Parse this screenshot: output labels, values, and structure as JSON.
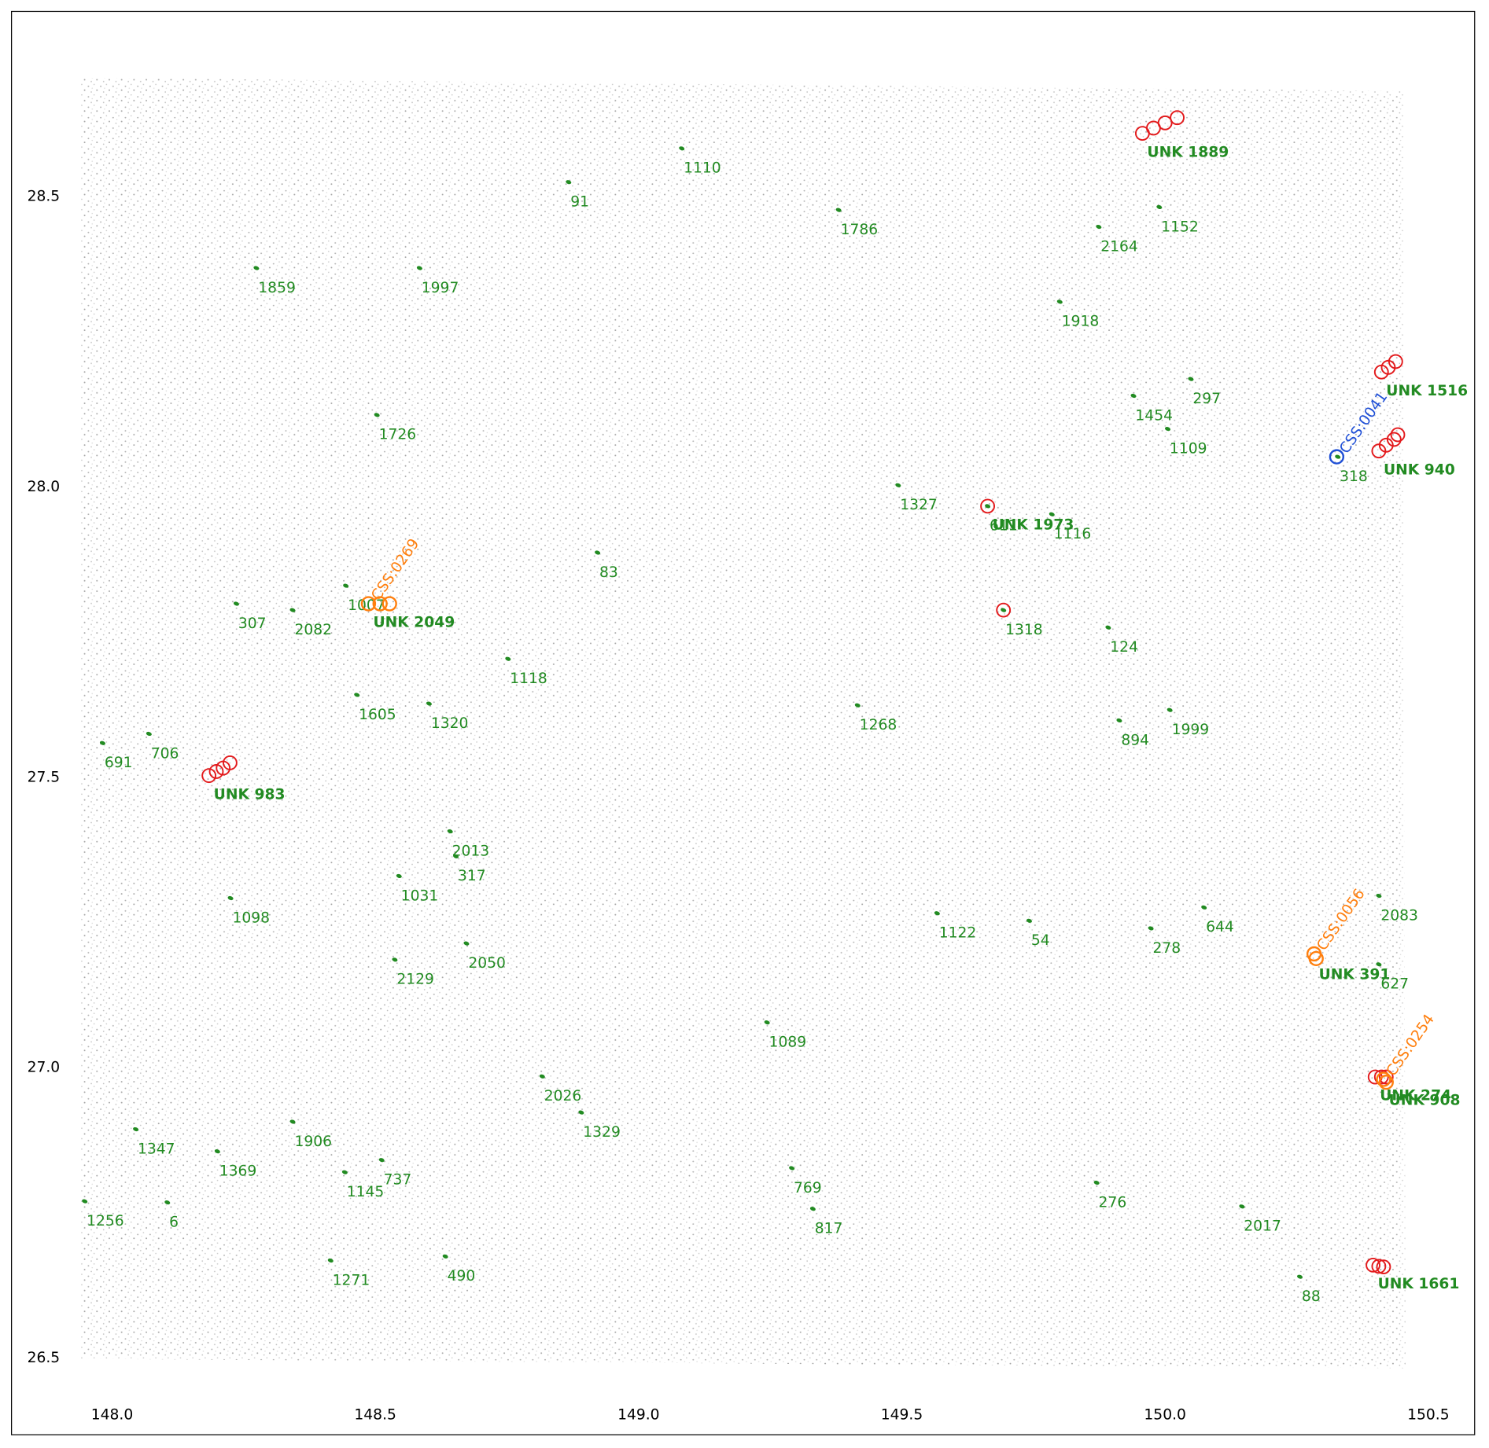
{
  "chart_data": {
    "type": "scatter",
    "xlim": [
      147.809,
      150.588
    ],
    "ylim": [
      26.368,
      28.819
    ],
    "xticks": [
      {
        "value": 148,
        "label": "148.0"
      },
      148.5,
      {
        "value": 149,
        "label": "149.0"
      },
      149.5,
      {
        "value": 150,
        "label": "150.0"
      },
      150.5
    ],
    "yticks": [
      26.5,
      {
        "value": 27,
        "label": "27.0"
      },
      27.5,
      {
        "value": 28,
        "label": "28.0"
      },
      28.5
    ],
    "sources": {
      "color": "#228b22",
      "labels": [
        "1110",
        "91",
        "1786",
        "1152",
        "2164",
        "1859",
        "1997",
        "1918",
        "297",
        "1454",
        "1726",
        "1109",
        "318",
        "1327",
        "611",
        "1116",
        "83",
        "1007",
        "307",
        "2082",
        "1318",
        "124",
        "1118",
        "1605",
        "1320",
        "1268",
        "1999",
        "894",
        "691",
        "706",
        "2013",
        "317",
        "1031",
        "1098",
        "2083",
        "644",
        "1122",
        "54",
        "278",
        "2050",
        "2129",
        "627",
        "1089",
        "2026",
        "1329",
        "1347",
        "1906",
        "1369",
        "737",
        "1145",
        "769",
        "276",
        "1256",
        "6",
        "817",
        "2017",
        "1271",
        "490",
        "88"
      ],
      "x": [
        149.082,
        148.867,
        149.38,
        149.989,
        149.874,
        148.274,
        148.584,
        149.8,
        150.049,
        149.94,
        148.503,
        150.005,
        150.328,
        149.493,
        149.663,
        149.785,
        148.922,
        148.444,
        148.236,
        148.343,
        149.693,
        149.892,
        148.752,
        148.465,
        148.602,
        149.416,
        150.009,
        149.913,
        147.982,
        148.07,
        148.642,
        148.653,
        148.545,
        148.225,
        150.406,
        150.074,
        149.567,
        149.742,
        149.973,
        148.673,
        148.537,
        150.406,
        149.244,
        148.817,
        148.891,
        148.045,
        148.343,
        148.2,
        148.512,
        148.442,
        149.291,
        149.87,
        147.948,
        148.105,
        149.331,
        150.146,
        148.415,
        148.633,
        150.256
      ],
      "y": [
        28.583,
        28.525,
        28.477,
        28.482,
        28.448,
        28.377,
        28.377,
        28.319,
        28.186,
        28.157,
        28.124,
        28.1,
        28.052,
        28.003,
        27.967,
        27.953,
        27.887,
        27.83,
        27.799,
        27.788,
        27.788,
        27.758,
        27.704,
        27.642,
        27.627,
        27.624,
        27.616,
        27.598,
        27.559,
        27.575,
        27.407,
        27.364,
        27.33,
        27.292,
        27.296,
        27.276,
        27.266,
        27.253,
        27.24,
        27.214,
        27.186,
        27.178,
        27.078,
        26.985,
        26.923,
        26.894,
        26.907,
        26.856,
        26.841,
        26.82,
        26.827,
        26.802,
        26.77,
        26.768,
        26.757,
        26.761,
        26.668,
        26.675,
        26.64
      ]
    },
    "candidates": [
      {
        "label": "UNK 1889",
        "color": "#e31a1c",
        "x": [
          149.957,
          149.978,
          150.0,
          150.023
        ],
        "y": [
          28.609,
          28.618,
          28.627,
          28.636
        ]
      },
      {
        "label": "UNK 1516",
        "color": "#e31a1c",
        "x": [
          150.411,
          150.424,
          150.438
        ],
        "y": [
          28.198,
          28.206,
          28.216
        ]
      },
      {
        "label": "UNK 940",
        "color": "#e31a1c",
        "x": [
          150.406,
          150.42,
          150.435,
          150.442
        ],
        "y": [
          28.062,
          28.072,
          28.082,
          28.09
        ]
      },
      {
        "label": "UNK 1973",
        "color": "#e31a1c",
        "x": [
          149.663
        ],
        "y": [
          27.967
        ]
      },
      {
        "color": "#e31a1c",
        "x": [
          149.693
        ],
        "y": [
          27.788
        ]
      },
      {
        "label": "UNK 2049",
        "x": [
          148.487
        ],
        "y": [
          27.799
        ]
      },
      {
        "label": "UNK 983",
        "color": "#e31a1c",
        "x": [
          148.184,
          148.198,
          148.211,
          148.224
        ],
        "y": [
          27.503,
          27.51,
          27.516,
          27.525
        ]
      },
      {
        "label": "UNK 391",
        "x": [
          150.283
        ],
        "y": [
          27.193
        ]
      },
      {
        "label": "UNK 274",
        "color": "#e31a1c",
        "x": [
          150.399,
          150.411,
          150.42
        ],
        "y": [
          26.984,
          26.984,
          26.984
        ]
      },
      {
        "label": "UNK 908",
        "x": [
          150.416
        ],
        "y": [
          26.976
        ]
      },
      {
        "label": "UNK 1661",
        "color": "#e31a1c",
        "x": [
          150.395,
          150.406,
          150.415
        ],
        "y": [
          26.66,
          26.658,
          26.657
        ]
      }
    ],
    "crossmatches": [
      {
        "label": "CSS:0269",
        "color": "#ff7f0e",
        "x": [
          148.487,
          148.509,
          148.527
        ],
        "y": [
          27.799,
          27.799,
          27.799
        ]
      },
      {
        "label": "CSS:0041",
        "color": "#1f4fd6",
        "x": [
          150.326
        ],
        "y": [
          28.052
        ]
      },
      {
        "label": "CSS:0056",
        "color": "#ff7f0e",
        "x": [
          150.283,
          150.287
        ],
        "y": [
          27.196,
          27.188
        ]
      },
      {
        "label": "CSS:0254",
        "color": "#ff7f0e",
        "x": [
          150.415,
          150.42
        ],
        "y": [
          26.98,
          26.975
        ]
      }
    ]
  }
}
